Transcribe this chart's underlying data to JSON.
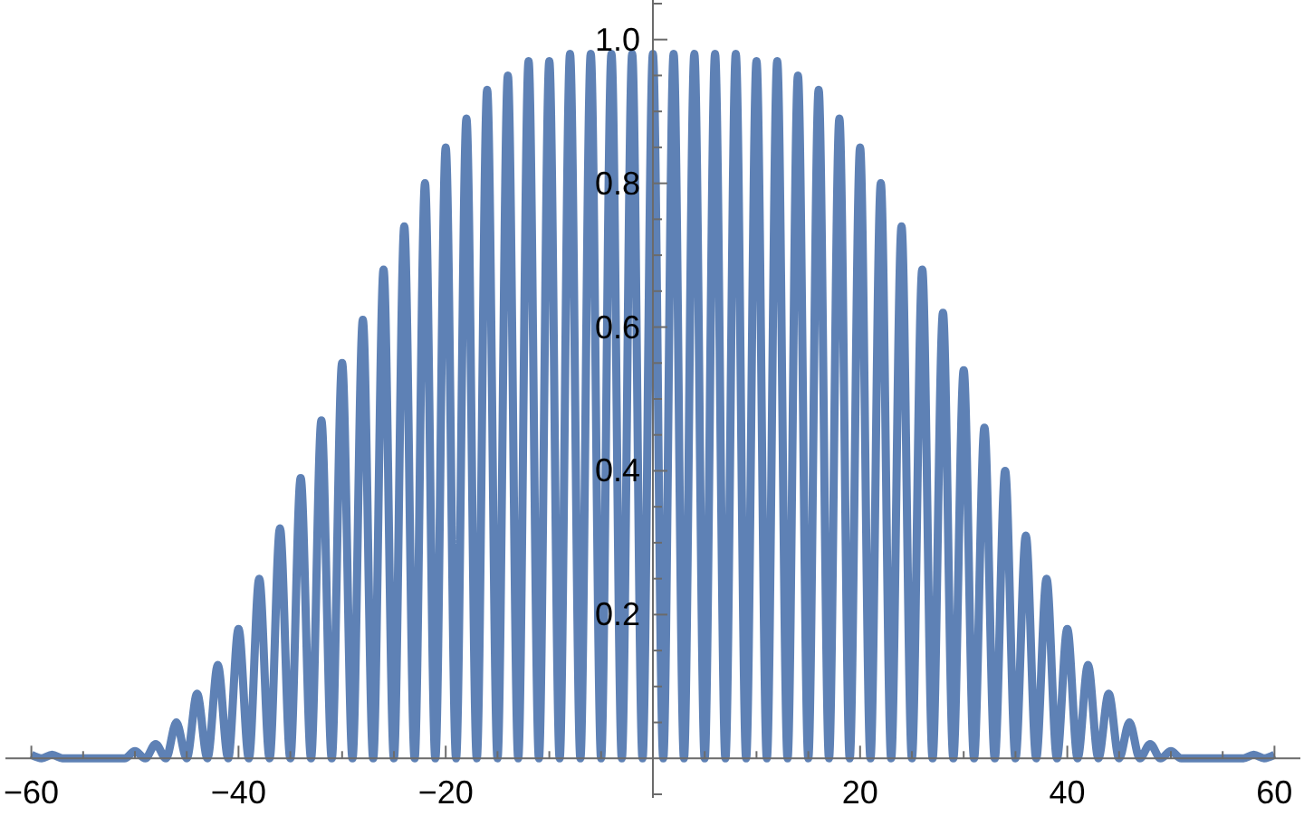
{
  "chart_data": {
    "type": "line",
    "x": [
      -60,
      -59,
      -58,
      -57,
      -56,
      -55,
      -54,
      -53,
      -52,
      -51,
      -50,
      -49,
      -48,
      -47,
      -46,
      -45,
      -44,
      -43,
      -42,
      -41,
      -40,
      -39,
      -38,
      -37,
      -36,
      -35,
      -34,
      -33,
      -32,
      -31,
      -30,
      -29,
      -28,
      -27,
      -26,
      -25,
      -24,
      -23,
      -22,
      -21,
      -20,
      -19,
      -18,
      -17,
      -16,
      -15,
      -14,
      -13,
      -12,
      -11,
      -10,
      -9,
      -8,
      -7,
      -6,
      -5,
      -4,
      -3,
      -2,
      -1,
      0,
      1,
      2,
      3,
      4,
      5,
      6,
      7,
      8,
      9,
      10,
      11,
      12,
      13,
      14,
      15,
      16,
      17,
      18,
      19,
      20,
      21,
      22,
      23,
      24,
      25,
      26,
      27,
      28,
      29,
      30,
      31,
      32,
      33,
      34,
      35,
      36,
      37,
      38,
      39,
      40,
      41,
      42,
      43,
      44,
      45,
      46,
      47,
      48,
      49,
      50,
      51,
      52,
      53,
      54,
      55,
      56,
      57,
      58,
      59,
      60
    ],
    "series": [
      {
        "color": "#5e81b5",
        "values": [
          0.005,
          0,
          0.005,
          0,
          0,
          0,
          0,
          0,
          0,
          0,
          0.01,
          0,
          0.02,
          0,
          0.05,
          0,
          0.09,
          0,
          0.13,
          0,
          0.18,
          0,
          0.25,
          0,
          0.32,
          0,
          0.39,
          0,
          0.47,
          0,
          0.55,
          0,
          0.61,
          0,
          0.68,
          0,
          0.74,
          0,
          0.8,
          0,
          0.85,
          0,
          0.89,
          0,
          0.93,
          0,
          0.95,
          0,
          0.97,
          0,
          0.97,
          0,
          0.98,
          0,
          0.98,
          0,
          0.98,
          0,
          0.98,
          0,
          0.98,
          0,
          0.98,
          0,
          0.98,
          0,
          0.98,
          0,
          0.98,
          0,
          0.97,
          0,
          0.97,
          0,
          0.95,
          0,
          0.93,
          0,
          0.89,
          0,
          0.85,
          0,
          0.8,
          0,
          0.74,
          0,
          0.68,
          0,
          0.62,
          0,
          0.54,
          0,
          0.46,
          0,
          0.4,
          0,
          0.31,
          0,
          0.25,
          0,
          0.18,
          0,
          0.13,
          0,
          0.09,
          0,
          0.05,
          0,
          0.02,
          0,
          0.01,
          0,
          0,
          0,
          0,
          0,
          0,
          0,
          0.005,
          0,
          0.005
        ]
      }
    ],
    "xlim": [
      -62.5,
      62.5
    ],
    "ylim": [
      -0.055,
      1.055
    ],
    "xticks": [
      {
        "value": -60,
        "label": "−60"
      },
      {
        "value": -55,
        "label": null
      },
      {
        "value": -50,
        "label": null
      },
      {
        "value": -45,
        "label": null
      },
      {
        "value": -40,
        "label": "−40"
      },
      {
        "value": -35,
        "label": null
      },
      {
        "value": -30,
        "label": null
      },
      {
        "value": -25,
        "label": null
      },
      {
        "value": -20,
        "label": "−20"
      },
      {
        "value": -15,
        "label": null
      },
      {
        "value": -10,
        "label": null
      },
      {
        "value": -5,
        "label": null
      },
      {
        "value": 5,
        "label": null
      },
      {
        "value": 10,
        "label": null
      },
      {
        "value": 15,
        "label": null
      },
      20,
      {
        "value": 25,
        "label": null
      },
      {
        "value": 30,
        "label": null
      },
      {
        "value": 35,
        "label": null
      },
      40,
      {
        "value": 45,
        "label": null
      },
      {
        "value": 50,
        "label": null
      },
      {
        "value": 55,
        "label": null
      },
      60
    ],
    "yticks": [
      {
        "value": -0.05,
        "label": null
      },
      {
        "value": 0.05,
        "label": null
      },
      {
        "value": 0.1,
        "label": null
      },
      {
        "value": 0.15,
        "label": null
      },
      0.2,
      {
        "value": 0.25,
        "label": null
      },
      {
        "value": 0.3,
        "label": null
      },
      {
        "value": 0.35,
        "label": null
      },
      0.4,
      {
        "value": 0.45,
        "label": null
      },
      {
        "value": 0.5,
        "label": null
      },
      {
        "value": 0.55,
        "label": null
      },
      0.6,
      {
        "value": 0.65,
        "label": null
      },
      {
        "value": 0.7,
        "label": null
      },
      {
        "value": 0.75,
        "label": null
      },
      0.8,
      {
        "value": 0.85,
        "label": null
      },
      {
        "value": 0.9,
        "label": null
      },
      {
        "value": 0.95,
        "label": null
      },
      {
        "value": 1,
        "label": "1.0"
      },
      {
        "value": 1.05,
        "label": null
      }
    ]
  }
}
